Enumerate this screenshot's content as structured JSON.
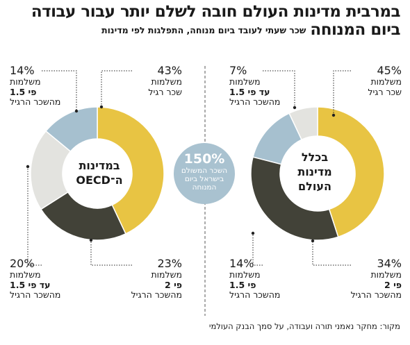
{
  "title": {
    "line1": "במרבית מדינות העולם חובה לשלם יותר עבור עבודה",
    "line2": "ביום המנוחה",
    "subtitle": "שכר שעתי לעובד ביום מנוחה, התפלגות לפי מדינות"
  },
  "center_note": {
    "value": "150%",
    "text": [
      "השכר המשולם",
      "בישראל ביום",
      "המנוחה"
    ]
  },
  "source": "מקור: מחקר נאמני תורה ועבודה, על סמך הבנק העולמי",
  "colors": {
    "regular": "#e8c443",
    "double": "#424238",
    "one_half_up_to": "#e3e3df",
    "one_half": "#a6c0cf",
    "center_circle": "#a9c2d0"
  },
  "chart_data": [
    {
      "type": "pie",
      "center_label": [
        "בכלל",
        "מדינות",
        "העולם"
      ],
      "slices": [
        {
          "key": "regular",
          "value": 45,
          "pct": "45%",
          "lines": [
            "משלמות",
            "שכר רגיל"
          ],
          "bold": ""
        },
        {
          "key": "double",
          "value": 34,
          "pct": "34%",
          "lines": [
            "משלמות",
            "מהשכר הרגיל"
          ],
          "bold": "פי 2"
        },
        {
          "key": "one_half",
          "value": 14,
          "pct": "14%",
          "lines": [
            "משלמות",
            "מהשכר הרגיל"
          ],
          "bold": "פי 1.5"
        },
        {
          "key": "one_half_up_to",
          "value": 7,
          "pct": "7%",
          "lines": [
            "משלמות",
            "מהשכר הרגיל"
          ],
          "bold": "עד פי 1.5"
        }
      ]
    },
    {
      "type": "pie",
      "center_label": [
        "במדינות",
        "ה־OECD"
      ],
      "slices": [
        {
          "key": "regular",
          "value": 43,
          "pct": "43%",
          "lines": [
            "משלמות",
            "שכר רגיל"
          ],
          "bold": ""
        },
        {
          "key": "double",
          "value": 23,
          "pct": "23%",
          "lines": [
            "משלמות",
            "מהשכר הרגיל"
          ],
          "bold": "פי 2"
        },
        {
          "key": "one_half_up_to",
          "value": 20,
          "pct": "20%",
          "lines": [
            "משלמות",
            "מהשכר הרגיל"
          ],
          "bold": "עד פי 1.5"
        },
        {
          "key": "one_half",
          "value": 14,
          "pct": "14%",
          "lines": [
            "משלמות",
            "מהשכר הרגיל"
          ],
          "bold": "פי 1.5"
        }
      ]
    }
  ]
}
